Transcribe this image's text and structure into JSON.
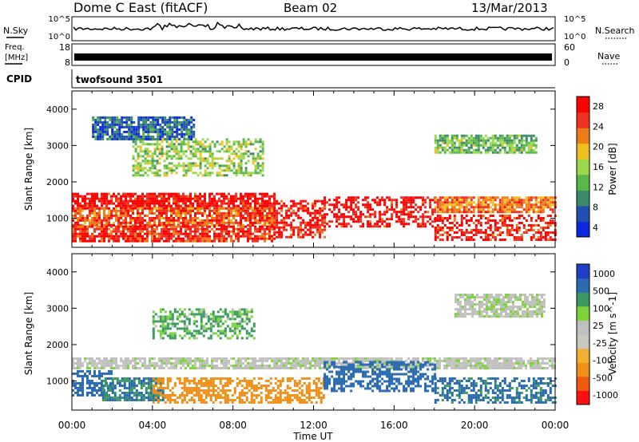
{
  "header": {
    "station": "Dome C East (fitACF)",
    "beam": "Beam 02",
    "date": "13/Mar/2013"
  },
  "status_panels": {
    "nsky_label": "N.Sky",
    "freq_label_1": "Freq.",
    "freq_label_2": "[MHz]",
    "cpid_label": "CPID",
    "nsearch_label": "N.Search",
    "nave_label": "Nave",
    "noise_left_ticks": [
      "10^5",
      "10^0"
    ],
    "noise_right_ticks": [
      "10^5",
      "10^0"
    ],
    "freq_left_ticks": [
      "18",
      "8"
    ],
    "nave_right_ticks": [
      "60",
      "0"
    ],
    "cpid_text": "twofsound 3501"
  },
  "colors": {
    "power_scale": [
      "#0a28e0",
      "#2050b0",
      "#3c8a6a",
      "#58b848",
      "#9cd84c",
      "#f0c020",
      "#f07c18",
      "#f03020",
      "#ff0000"
    ],
    "velocity_scale": [
      "#ff1010",
      "#f05a10",
      "#f09018",
      "#f4b030",
      "#c8c8c0",
      "#bfbfbf",
      "#7ad43a",
      "#3a9a60",
      "#2a6ab0",
      "#1f3fc8"
    ]
  },
  "chart_data": [
    {
      "type": "heatmap",
      "name": "power",
      "xlabel": "",
      "ylabel": "Slant Range [km]",
      "x_ticks": [
        "00:00",
        "04:00",
        "08:00",
        "12:00",
        "16:00",
        "20:00",
        "00:00"
      ],
      "y_ticks": [
        "1000",
        "2000",
        "3000",
        "4000"
      ],
      "ylim": [
        200,
        4500
      ],
      "colorbar_label": "Power [dB]",
      "colorbar_ticks": [
        "28",
        "24",
        "20",
        "16",
        "12",
        "8",
        "4"
      ],
      "colorbar_range": [
        0,
        30
      ],
      "regions": [
        {
          "x0": 0.0,
          "x1": 10.0,
          "y0": 1300,
          "y1": 1700,
          "value": 28
        },
        {
          "x0": 0.0,
          "x1": 10.0,
          "y0": 800,
          "y1": 1300,
          "value": 24
        },
        {
          "x0": 0.0,
          "x1": 10.0,
          "y0": 350,
          "y1": 800,
          "value": 26
        },
        {
          "x0": 10.0,
          "x1": 12.5,
          "y0": 500,
          "y1": 1500,
          "value": 27
        },
        {
          "x0": 12.5,
          "x1": 18.0,
          "y0": 800,
          "y1": 1600,
          "value": 28
        },
        {
          "x0": 18.0,
          "x1": 24.0,
          "y0": 400,
          "y1": 1100,
          "value": 27
        },
        {
          "x0": 18.0,
          "x1": 24.0,
          "y0": 1200,
          "y1": 1600,
          "value": 22
        },
        {
          "x0": 3.0,
          "x1": 9.5,
          "y0": 2200,
          "y1": 3200,
          "value": 14
        },
        {
          "x0": 1.0,
          "x1": 6.0,
          "y0": 3200,
          "y1": 3800,
          "value": 6
        },
        {
          "x0": 18.0,
          "x1": 23.0,
          "y0": 2800,
          "y1": 3300,
          "value": 12
        }
      ]
    },
    {
      "type": "heatmap",
      "name": "velocity",
      "xlabel": "Time UT",
      "ylabel": "Slant Range [km]",
      "x_ticks": [
        "00:00",
        "04:00",
        "08:00",
        "12:00",
        "16:00",
        "20:00",
        "00:00"
      ],
      "y_ticks": [
        "1000",
        "2000",
        "3000",
        "4000"
      ],
      "ylim": [
        200,
        4500
      ],
      "colorbar_label": "Velocity [m s^-1]",
      "colorbar_ticks": [
        "1000",
        "500",
        "100",
        "25",
        "-25",
        "-100",
        "-500",
        "-1000"
      ],
      "regions": [
        {
          "x0": 0.0,
          "x1": 24.0,
          "y0": 1350,
          "y1": 1650,
          "value": 0
        },
        {
          "x0": 0.0,
          "x1": 2.0,
          "y0": 600,
          "y1": 1300,
          "value": 300
        },
        {
          "x0": 1.5,
          "x1": 4.5,
          "y0": 500,
          "y1": 1100,
          "value": 100
        },
        {
          "x0": 4.0,
          "x1": 12.5,
          "y0": 400,
          "y1": 1100,
          "value": -150
        },
        {
          "x0": 12.5,
          "x1": 18.0,
          "y0": 700,
          "y1": 1550,
          "value": 300
        },
        {
          "x0": 18.0,
          "x1": 24.0,
          "y0": 400,
          "y1": 1100,
          "value": 120
        },
        {
          "x0": 4.0,
          "x1": 9.0,
          "y0": 2200,
          "y1": 3000,
          "value": 60
        },
        {
          "x0": 19.0,
          "x1": 23.5,
          "y0": 2800,
          "y1": 3400,
          "value": 10
        }
      ]
    }
  ],
  "axes": {
    "time_label": "Time UT"
  }
}
